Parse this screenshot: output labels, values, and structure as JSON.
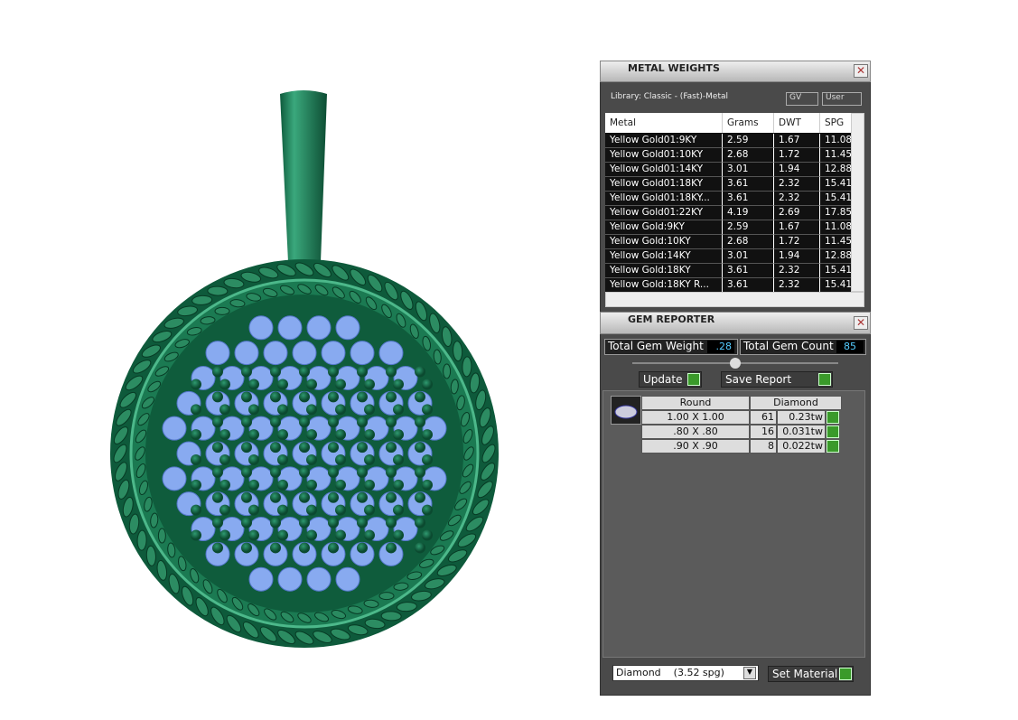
{
  "metal_weights": {
    "title": "METAL WEIGHTS",
    "library": "Library: Classic - (Fast)-Metal",
    "buttons": [
      "GV",
      "User"
    ],
    "columns": [
      "Metal",
      "Grams",
      "DWT",
      "SPG"
    ],
    "rows": [
      [
        "Yellow Gold01:9KY",
        "2.59",
        "1.67",
        "11.08"
      ],
      [
        "Yellow Gold01:10KY",
        "2.68",
        "1.72",
        "11.45"
      ],
      [
        "Yellow Gold01:14KY",
        "3.01",
        "1.94",
        "12.88"
      ],
      [
        "Yellow Gold01:18KY",
        "3.61",
        "2.32",
        "15.41"
      ],
      [
        "Yellow Gold01:18KY...",
        "3.61",
        "2.32",
        "15.41"
      ],
      [
        "Yellow Gold01:22KY",
        "4.19",
        "2.69",
        "17.85"
      ],
      [
        "Yellow Gold:9KY",
        "2.59",
        "1.67",
        "11.08"
      ],
      [
        "Yellow Gold:10KY",
        "2.68",
        "1.72",
        "11.45"
      ],
      [
        "Yellow Gold:14KY",
        "3.01",
        "1.94",
        "12.88"
      ],
      [
        "Yellow Gold:18KY",
        "3.61",
        "2.32",
        "15.41"
      ],
      [
        "Yellow Gold:18KY R...",
        "3.61",
        "2.32",
        "15.41"
      ]
    ]
  },
  "gem_reporter": {
    "title": "GEM REPORTER",
    "total_weight_label": "Total Gem Weight",
    "total_weight": ".28",
    "total_count_label": "Total Gem Count",
    "total_count": "85",
    "update": "Update",
    "save_report": "Save Report",
    "table": {
      "columns": [
        "Round",
        "Diamond"
      ],
      "rows": [
        [
          "1.00 X 1.00",
          "61",
          "0.23tw"
        ],
        [
          ".80 X .80",
          "16",
          "0.031tw"
        ],
        [
          ".90 X .90",
          "8",
          "0.022tw"
        ]
      ]
    },
    "material": "Diamond    (3.52 spg)",
    "set_material": "Set Material"
  }
}
